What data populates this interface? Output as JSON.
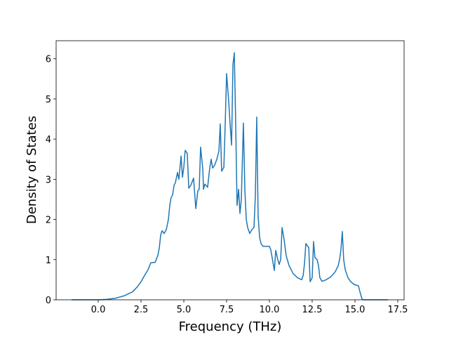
{
  "chart_data": {
    "type": "line",
    "xlabel": "Frequency (THz)",
    "ylabel": "Density of States",
    "x": [
      -1.56,
      0,
      0.49,
      1.02,
      1.52,
      2.01,
      2.3,
      2.5,
      2.7,
      2.91,
      3.07,
      3.32,
      3.48,
      3.57,
      3.65,
      3.73,
      3.85,
      3.98,
      4.1,
      4.18,
      4.26,
      4.34,
      4.43,
      4.51,
      4.63,
      4.71,
      4.84,
      4.92,
      5.0,
      5.08,
      5.2,
      5.29,
      5.41,
      5.57,
      5.7,
      5.82,
      5.9,
      5.98,
      6.11,
      6.15,
      6.23,
      6.39,
      6.52,
      6.6,
      6.68,
      6.8,
      6.93,
      7.05,
      7.13,
      7.21,
      7.34,
      7.42,
      7.5,
      7.62,
      7.7,
      7.79,
      7.87,
      7.95,
      8.03,
      8.11,
      8.2,
      8.28,
      8.36,
      8.48,
      8.57,
      8.65,
      8.73,
      8.85,
      8.98,
      9.1,
      9.18,
      9.26,
      9.34,
      9.43,
      9.51,
      9.63,
      10.0,
      10.08,
      10.16,
      10.29,
      10.37,
      10.49,
      10.57,
      10.66,
      10.74,
      10.86,
      10.98,
      11.15,
      11.39,
      11.64,
      11.89,
      11.97,
      12.05,
      12.13,
      12.21,
      12.3,
      12.38,
      12.5,
      12.58,
      12.66,
      12.79,
      12.87,
      12.95,
      13.07,
      13.32,
      13.61,
      13.85,
      14.02,
      14.1,
      14.18,
      14.26,
      14.34,
      14.43,
      14.59,
      14.75,
      14.96,
      15.2,
      15.29,
      15.41,
      15.49,
      16.93
    ],
    "series": [
      {
        "color": "#1f77b4",
        "values": [
          0,
          0,
          0.01,
          0.04,
          0.1,
          0.2,
          0.33,
          0.45,
          0.6,
          0.75,
          0.92,
          0.93,
          1.1,
          1.3,
          1.62,
          1.72,
          1.65,
          1.75,
          2.0,
          2.35,
          2.55,
          2.6,
          2.85,
          2.92,
          3.17,
          3.0,
          3.58,
          3.05,
          3.3,
          3.72,
          3.65,
          2.78,
          2.85,
          3.03,
          2.27,
          2.72,
          2.75,
          3.8,
          3.25,
          2.75,
          2.88,
          2.8,
          3.3,
          3.5,
          3.28,
          3.35,
          3.5,
          3.7,
          4.38,
          3.2,
          3.3,
          4.4,
          5.63,
          4.95,
          4.4,
          3.85,
          5.85,
          6.15,
          4.4,
          2.35,
          2.75,
          2.15,
          2.5,
          4.4,
          2.7,
          2.0,
          1.8,
          1.65,
          1.75,
          1.8,
          2.6,
          4.55,
          2.1,
          1.55,
          1.4,
          1.33,
          1.33,
          1.25,
          1.05,
          0.73,
          1.23,
          1.0,
          0.88,
          1.0,
          1.8,
          1.5,
          1.1,
          0.85,
          0.65,
          0.55,
          0.5,
          0.6,
          0.9,
          1.4,
          1.35,
          1.3,
          0.45,
          0.55,
          1.45,
          1.05,
          1.0,
          0.85,
          0.55,
          0.46,
          0.5,
          0.58,
          0.7,
          0.85,
          1.0,
          1.25,
          1.7,
          1.0,
          0.75,
          0.55,
          0.45,
          0.38,
          0.35,
          0.2,
          0.02,
          0,
          0
        ]
      }
    ],
    "xlim": [
      -2.46,
      17.87
    ],
    "ylim": [
      0,
      6.45
    ],
    "xticks": [
      {
        "value": 0,
        "label": "0.0"
      },
      2.5,
      {
        "value": 5,
        "label": "5.0"
      },
      7.5,
      {
        "value": 10,
        "label": "10.0"
      },
      12.5,
      {
        "value": 15,
        "label": "15.0"
      },
      17.5
    ],
    "yticks": [
      0,
      1,
      2,
      3,
      4,
      5,
      6
    ]
  }
}
